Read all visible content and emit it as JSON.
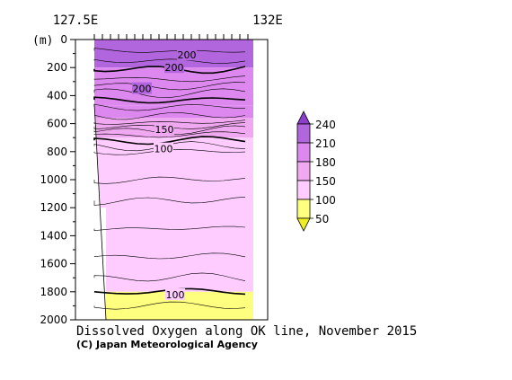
{
  "chart_data": {
    "type": "heatmap",
    "title": "Dissolved Oxygen along OK line, November 2015",
    "credit": "(C) Japan Meteorological Agency",
    "x_start_label": "127.5E",
    "x_end_label": "132E",
    "y_unit": "(m)",
    "y_ticks": [
      0,
      200,
      400,
      600,
      800,
      1000,
      1200,
      1400,
      1600,
      1800,
      2000
    ],
    "ylim": [
      2000,
      0
    ],
    "colorbar": {
      "levels": [
        50,
        100,
        150,
        180,
        210,
        240
      ],
      "colors": [
        "#eeee22",
        "#ffff7f",
        "#ffccff",
        "#f0a8f0",
        "#dd88ee",
        "#b266dd",
        "#8a3fcc"
      ]
    },
    "contour_labels": [
      {
        "value": "200",
        "depth": 170
      },
      {
        "value": "200",
        "depth": 290
      },
      {
        "value": "200",
        "depth": 520
      },
      {
        "value": "150",
        "depth": 930
      },
      {
        "value": "100",
        "depth": 1100
      },
      {
        "value": "100",
        "depth": 1820
      }
    ],
    "layers": [
      {
        "value": 210,
        "top": 0,
        "bottom": 200
      },
      {
        "value": 200,
        "top": 200,
        "bottom": 470
      },
      {
        "value": 180,
        "top": 470,
        "bottom": 560
      },
      {
        "value": 150,
        "top": 560,
        "bottom": 700
      },
      {
        "value": 100,
        "top": 700,
        "bottom": 1800
      },
      {
        "value": 90,
        "top": 1800,
        "bottom": 2000
      }
    ]
  }
}
